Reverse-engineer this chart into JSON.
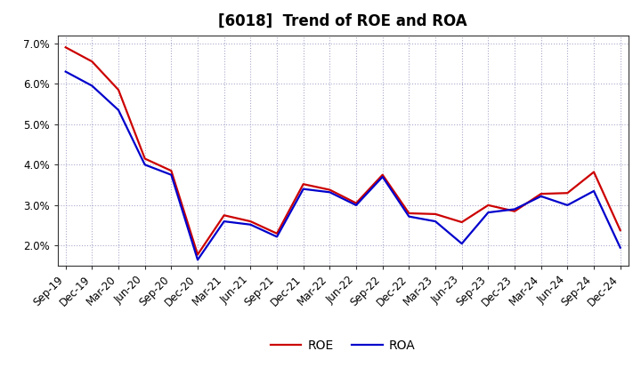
{
  "title": "[6018]  Trend of ROE and ROA",
  "x_labels": [
    "Sep-19",
    "Dec-19",
    "Mar-20",
    "Jun-20",
    "Sep-20",
    "Dec-20",
    "Mar-21",
    "Jun-21",
    "Sep-21",
    "Dec-21",
    "Mar-22",
    "Jun-22",
    "Sep-22",
    "Dec-22",
    "Mar-23",
    "Jun-23",
    "Sep-23",
    "Dec-23",
    "Mar-24",
    "Jun-24",
    "Sep-24",
    "Dec-24"
  ],
  "ROE": [
    6.9,
    6.55,
    5.85,
    4.15,
    3.85,
    1.78,
    2.75,
    2.6,
    2.3,
    3.52,
    3.38,
    3.05,
    3.75,
    2.8,
    2.78,
    2.58,
    3.0,
    2.85,
    3.28,
    3.3,
    3.82,
    2.38
  ],
  "ROA": [
    6.3,
    5.95,
    5.35,
    4.0,
    3.75,
    1.65,
    2.6,
    2.52,
    2.22,
    3.4,
    3.32,
    3.0,
    3.7,
    2.72,
    2.6,
    2.05,
    2.82,
    2.9,
    3.22,
    3.0,
    3.35,
    1.95
  ],
  "ROE_color": "#cc0000",
  "ROA_color": "#0000cc",
  "ylim": [
    1.5,
    7.2
  ],
  "yticks": [
    2.0,
    3.0,
    4.0,
    5.0,
    6.0,
    7.0
  ],
  "background_color": "#ffffff",
  "plot_bg_color": "#ffffff",
  "grid_color": "#aaaacc",
  "title_fontsize": 12,
  "legend_fontsize": 10,
  "tick_fontsize": 8.5,
  "linewidth": 1.6
}
